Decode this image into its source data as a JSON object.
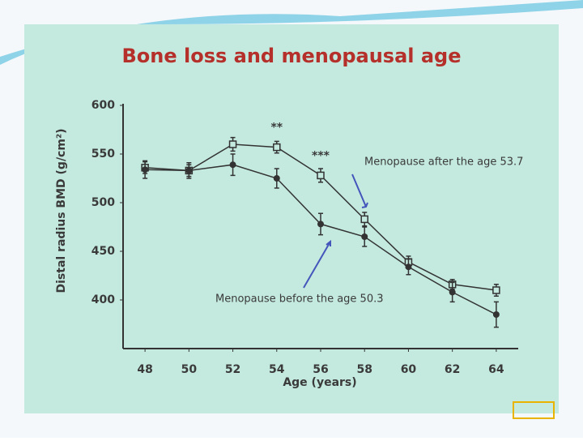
{
  "chart_data": {
    "type": "line",
    "title": "Bone loss and menopausal age",
    "x_label": "Age (years)",
    "y_label": "Distal radius BMD (g/cm²)",
    "x": [
      48,
      50,
      52,
      54,
      56,
      58,
      60,
      62,
      64
    ],
    "xlim": [
      47,
      65
    ],
    "xticks": [
      48,
      50,
      52,
      54,
      56,
      58,
      60,
      62,
      64
    ],
    "ylim": [
      350,
      600
    ],
    "yticks": [
      400,
      450,
      500,
      550,
      600
    ],
    "series": [
      {
        "name": "Menopause after the age 53.7",
        "color": "#333333",
        "marker": "open-square",
        "values": [
          536,
          533,
          560,
          557,
          528,
          483,
          439,
          416,
          410
        ],
        "errors": [
          6,
          6,
          7,
          6,
          7,
          7,
          6,
          5,
          6
        ]
      },
      {
        "name": "Menopause before the age 50.3",
        "color": "#333333",
        "marker": "filled-circle",
        "values": [
          534,
          533,
          539,
          525,
          478,
          465,
          434,
          408,
          385
        ],
        "errors": [
          9,
          8,
          11,
          10,
          11,
          10,
          8,
          10,
          13
        ]
      }
    ],
    "annotations": [
      {
        "text": "**",
        "x": 54
      },
      {
        "text": "***",
        "x": 56
      }
    ]
  }
}
